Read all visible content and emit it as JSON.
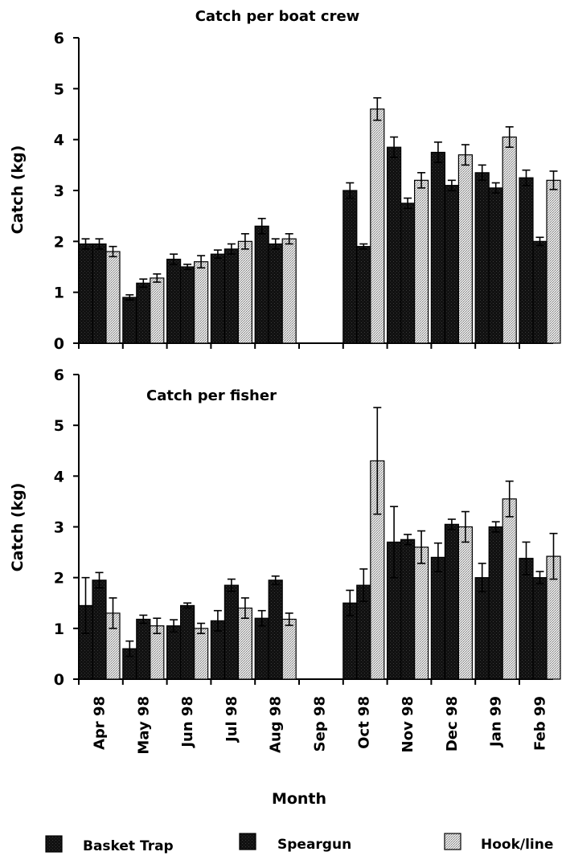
{
  "figure": {
    "xlabel": "Month",
    "months": [
      "Apr 98",
      "May 98",
      "Jun 98",
      "Jul 98",
      "Aug 98",
      "Sep 98",
      "Oct 98",
      "Nov 98",
      "Dec 98",
      "Jan 99",
      "Feb 99"
    ],
    "legend": [
      {
        "name": "Basket Trap",
        "color": "#111111",
        "pattern": "solid"
      },
      {
        "name": "Speargun",
        "color": "#111111",
        "pattern": "solid"
      },
      {
        "name": "Hook/line",
        "color": "#cfcfcf",
        "pattern": "stipple"
      }
    ]
  },
  "chart_data": [
    {
      "type": "bar",
      "title": "Catch per boat crew",
      "ylabel": "Catch (kg)",
      "ylim": [
        0,
        6
      ],
      "yticks": [
        0,
        1,
        2,
        3,
        4,
        5,
        6
      ],
      "categories": [
        "Apr 98",
        "May 98",
        "Jun 98",
        "Jul 98",
        "Aug 98",
        "Sep 98",
        "Oct 98",
        "Nov 98",
        "Dec 98",
        "Jan 99",
        "Feb 99"
      ],
      "series": [
        {
          "name": "Basket Trap",
          "values": [
            1.95,
            0.9,
            1.65,
            1.75,
            2.3,
            null,
            3.0,
            3.85,
            3.75,
            3.35,
            3.25
          ],
          "errors": [
            0.1,
            0.05,
            0.1,
            0.08,
            0.15,
            null,
            0.15,
            0.2,
            0.2,
            0.15,
            0.15
          ]
        },
        {
          "name": "Speargun",
          "values": [
            1.95,
            1.18,
            1.5,
            1.85,
            1.95,
            null,
            1.9,
            2.75,
            3.1,
            3.05,
            2.0
          ],
          "errors": [
            0.1,
            0.08,
            0.05,
            0.1,
            0.1,
            null,
            0.05,
            0.1,
            0.1,
            0.1,
            0.08
          ]
        },
        {
          "name": "Hook/line",
          "values": [
            1.8,
            1.28,
            1.6,
            2.0,
            2.05,
            null,
            4.6,
            3.2,
            3.7,
            4.05,
            3.2
          ],
          "errors": [
            0.1,
            0.08,
            0.12,
            0.15,
            0.1,
            null,
            0.22,
            0.15,
            0.2,
            0.2,
            0.18
          ]
        }
      ]
    },
    {
      "type": "bar",
      "title": "Catch per fisher",
      "ylabel": "Catch (kg)",
      "ylim": [
        0,
        6
      ],
      "yticks": [
        0,
        1,
        2,
        3,
        4,
        5,
        6
      ],
      "categories": [
        "Apr 98",
        "May 98",
        "Jun 98",
        "Jul 98",
        "Aug 98",
        "Sep 98",
        "Oct 98",
        "Nov 98",
        "Dec 98",
        "Jan 99",
        "Feb 99"
      ],
      "series": [
        {
          "name": "Basket Trap",
          "values": [
            1.45,
            0.6,
            1.05,
            1.15,
            1.2,
            null,
            1.5,
            2.7,
            2.4,
            2.0,
            2.38
          ],
          "errors": [
            0.55,
            0.15,
            0.12,
            0.2,
            0.15,
            null,
            0.25,
            0.7,
            0.28,
            0.28,
            0.32
          ]
        },
        {
          "name": "Speargun",
          "values": [
            1.95,
            1.18,
            1.45,
            1.85,
            1.95,
            null,
            1.85,
            2.75,
            3.05,
            3.0,
            2.0
          ],
          "errors": [
            0.15,
            0.08,
            0.05,
            0.12,
            0.08,
            null,
            0.32,
            0.1,
            0.1,
            0.1,
            0.12
          ]
        },
        {
          "name": "Hook/line",
          "values": [
            1.3,
            1.05,
            1.0,
            1.4,
            1.18,
            null,
            4.3,
            2.6,
            3.0,
            3.55,
            2.42
          ],
          "errors": [
            0.3,
            0.15,
            0.1,
            0.2,
            0.12,
            null,
            1.05,
            0.32,
            0.3,
            0.35,
            0.45
          ]
        }
      ]
    }
  ]
}
